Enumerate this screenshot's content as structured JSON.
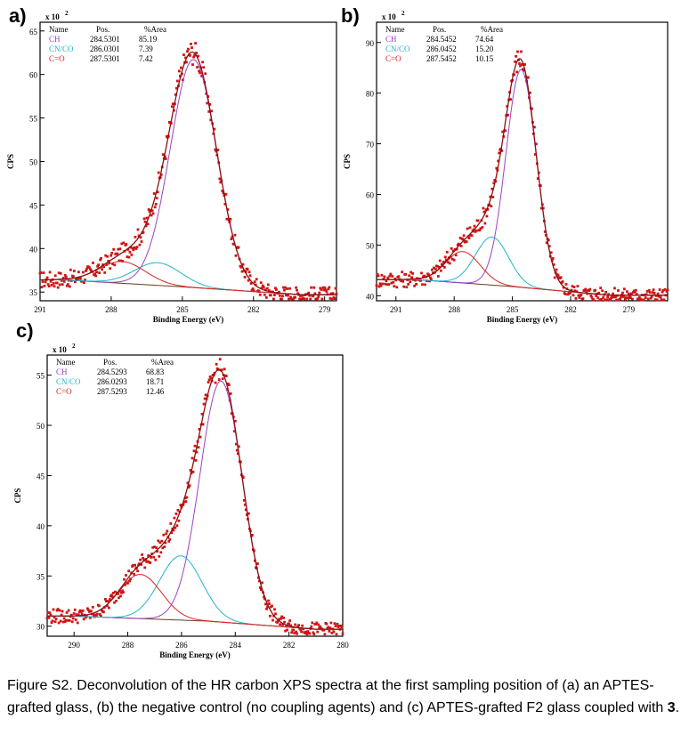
{
  "colors": {
    "data": "#d01414",
    "envelope": "#8b1010",
    "CH": "#a040c0",
    "CN_CO": "#20b4c8",
    "C_O": "#e02020",
    "background_line": "#6b3a1e"
  },
  "caption": {
    "prefix": "Figure S2. Deconvolution of the HR carbon XPS spectra at the first sampling position of (a) an APTES-grafted glass, (b) the negative control (no coupling agents) and (c) APTES-grafted F2 glass coupled with ",
    "bold": "3",
    "suffix": "."
  },
  "chart_data": [
    {
      "panel": "a)",
      "type": "line",
      "xlabel": "Binding Energy (eV)",
      "ylabel": "CPS",
      "multiplier": "x 10",
      "multiplier_exp": "2",
      "xlim": [
        291,
        278.5
      ],
      "ylim": [
        34,
        66
      ],
      "xticks": [
        291,
        288,
        285,
        282,
        279
      ],
      "yticks": [
        35,
        40,
        45,
        50,
        55,
        60,
        65
      ],
      "legend": {
        "headers": [
          "Name",
          "Pos.",
          "%Area"
        ],
        "rows": [
          {
            "name": "CH",
            "pos": "284.5301",
            "area": "85.19"
          },
          {
            "name": "CN/CO",
            "pos": "286.0301",
            "area": "7.39"
          },
          {
            "name": "C=O",
            "pos": "287.5301",
            "area": "7.42"
          }
        ]
      },
      "baseline": [
        [
          290,
          36.4
        ],
        [
          285,
          35.6
        ],
        [
          280,
          34.7
        ]
      ],
      "peaks": [
        {
          "name": "CH",
          "center": 284.53,
          "height": 26.2,
          "fwhm": 2.3
        },
        {
          "name": "CN/CO",
          "center": 286.03,
          "height": 2.6,
          "fwhm": 2.3
        },
        {
          "name": "C=O",
          "center": 287.53,
          "height": 2.5,
          "fwhm": 2.3
        }
      ],
      "noise": 0.8
    },
    {
      "panel": "b)",
      "type": "line",
      "xlabel": "Binding Energy (eV)",
      "ylabel": "CPS",
      "multiplier": "x 10",
      "multiplier_exp": "2",
      "xlim": [
        292,
        277
      ],
      "ylim": [
        39,
        94
      ],
      "xticks": [
        291,
        288,
        285,
        282,
        279
      ],
      "yticks": [
        40,
        50,
        60,
        70,
        80,
        90
      ],
      "legend": {
        "headers": [
          "Name",
          "Pos.",
          "%Area"
        ],
        "rows": [
          {
            "name": "CH",
            "pos": "284.5452",
            "area": "74.64"
          },
          {
            "name": "CN/CO",
            "pos": "286.0452",
            "area": "15.20"
          },
          {
            "name": "C=O",
            "pos": "287.5452",
            "area": "10.15"
          }
        ]
      },
      "baseline": [
        [
          290,
          43.2
        ],
        [
          285,
          41.8
        ],
        [
          280,
          40.1
        ]
      ],
      "peaks": [
        {
          "name": "CH",
          "center": 284.55,
          "height": 43.0,
          "fwhm": 1.85
        },
        {
          "name": "CN/CO",
          "center": 286.05,
          "height": 9.5,
          "fwhm": 2.0
        },
        {
          "name": "C=O",
          "center": 287.55,
          "height": 6.2,
          "fwhm": 2.1
        }
      ],
      "noise": 1.2
    },
    {
      "panel": "c)",
      "type": "line",
      "xlabel": "Binding Energy (eV)",
      "ylabel": "CPS",
      "multiplier": "x 10",
      "multiplier_exp": "2",
      "xlim": [
        291,
        280
      ],
      "ylim": [
        29,
        57
      ],
      "xticks": [
        290,
        288,
        286,
        284,
        282,
        280
      ],
      "yticks": [
        30,
        35,
        40,
        45,
        50,
        55
      ],
      "legend": {
        "headers": [
          "Name",
          "Pos.",
          "%Area"
        ],
        "rows": [
          {
            "name": "CH",
            "pos": "284.5293",
            "area": "68.83"
          },
          {
            "name": "CN/CO",
            "pos": "286.0293",
            "area": "18.71"
          },
          {
            "name": "C=O",
            "pos": "287.5293",
            "area": "12.46"
          }
        ]
      },
      "baseline": [
        [
          290,
          31.0
        ],
        [
          285,
          30.5
        ],
        [
          281,
          29.7
        ]
      ],
      "peaks": [
        {
          "name": "CH",
          "center": 284.53,
          "height": 24.0,
          "fwhm": 1.85
        },
        {
          "name": "CN/CO",
          "center": 286.03,
          "height": 6.4,
          "fwhm": 1.85
        },
        {
          "name": "C=O",
          "center": 287.53,
          "height": 4.4,
          "fwhm": 1.85
        }
      ],
      "noise": 0.6
    }
  ]
}
